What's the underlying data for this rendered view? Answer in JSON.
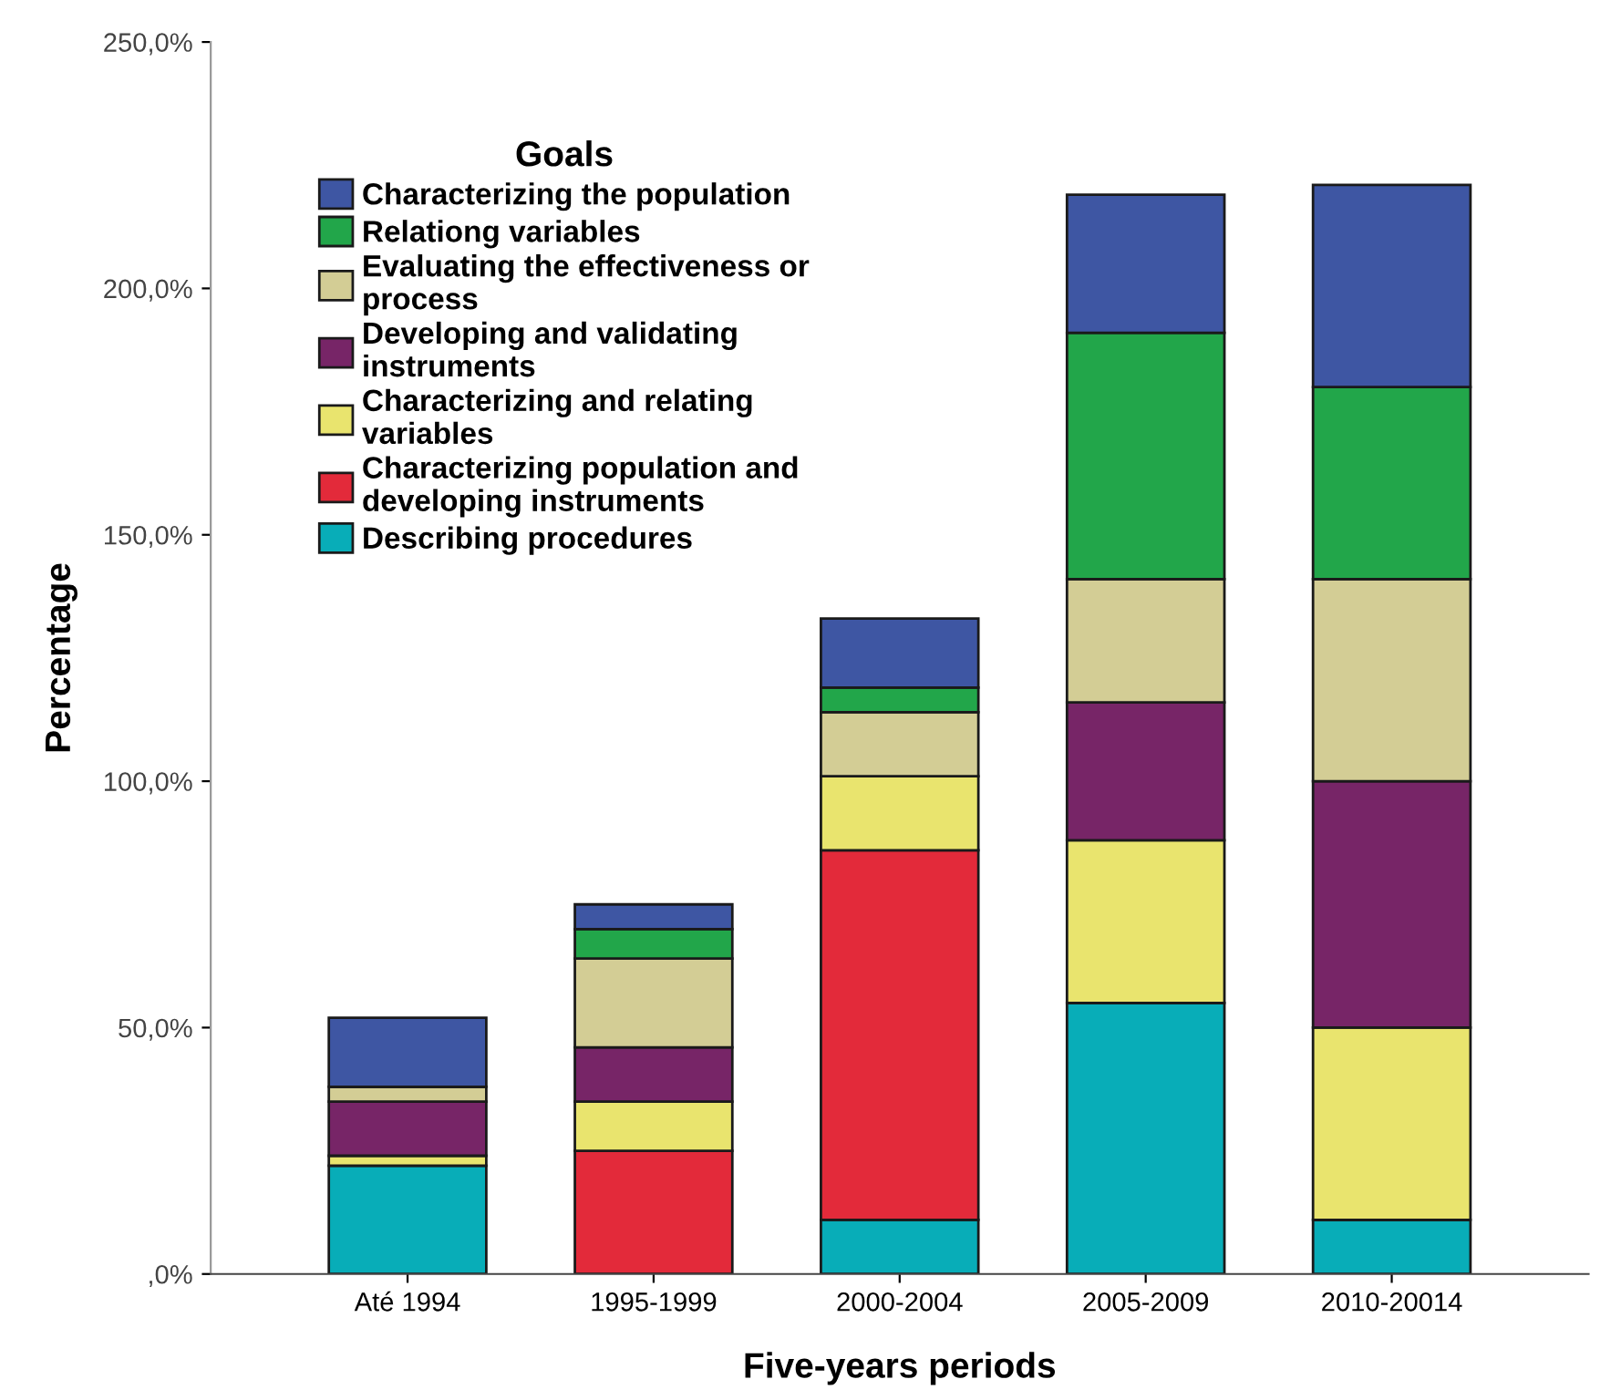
{
  "chart_data": {
    "type": "bar",
    "stacked": true,
    "xlabel": "Five-years periods",
    "ylabel": "Percentage",
    "legend_title": "Goals",
    "legend": "top left",
    "grid": false,
    "categories": [
      "Até 1994",
      "1995-1999",
      "2000-2004",
      "2005-2009",
      "2010-20014"
    ],
    "ylim": [
      0,
      250
    ],
    "yticks": [
      {
        "value": 0,
        "label": ",0%"
      },
      {
        "value": 50,
        "label": "50,0%"
      },
      {
        "value": 100,
        "label": "100,0%"
      },
      {
        "value": 150,
        "label": "150,0%"
      },
      {
        "value": 200,
        "label": "200,0%"
      },
      {
        "value": 250,
        "label": "250,0%"
      }
    ],
    "series": [
      {
        "name": "Describing procedures",
        "color": "#08adb8",
        "values": [
          22,
          0,
          11,
          55,
          11
        ]
      },
      {
        "name": "Characterizing population and\ndeveloping instruments",
        "color": "#e32a3a",
        "values": [
          0,
          25,
          75,
          0,
          0
        ]
      },
      {
        "name": "Characterizing and relating\nvariables",
        "color": "#e9e46e",
        "values": [
          2,
          10,
          15,
          33,
          39
        ]
      },
      {
        "name": "Developing and validating\ninstruments",
        "color": "#772567",
        "values": [
          11,
          11,
          0,
          28,
          50
        ]
      },
      {
        "name": "Evaluating the effectiveness or\nprocess",
        "color": "#d3cd95",
        "values": [
          3,
          18,
          13,
          25,
          41
        ]
      },
      {
        "name": "Relationg variables",
        "color": "#22a64a",
        "values": [
          0,
          6,
          5,
          50,
          39
        ]
      },
      {
        "name": "Characterizing the population",
        "color": "#3e56a3",
        "values": [
          14,
          5,
          14,
          28,
          41
        ]
      }
    ]
  }
}
